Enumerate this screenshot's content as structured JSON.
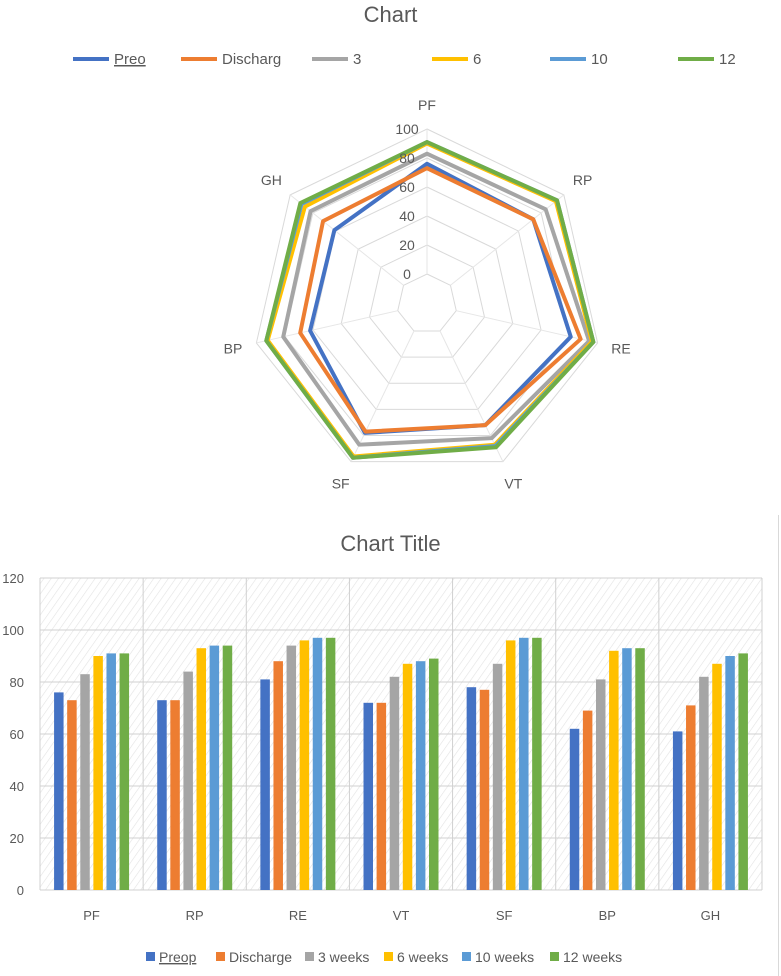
{
  "chart_data": [
    {
      "type": "radar",
      "title": "Chart",
      "categories": [
        "PF",
        "RP",
        "RE",
        "VT",
        "SF",
        "BP",
        "GH"
      ],
      "axis_ticks": [
        "0",
        "20",
        "40",
        "60",
        "80",
        "100"
      ],
      "rlim": [
        0,
        100
      ],
      "legend_position": "top",
      "series": [
        {
          "name": "Preo",
          "color": "#4472C4",
          "values": [
            76,
            73,
            81,
            72,
            78,
            62,
            61
          ]
        },
        {
          "name": "Discharg",
          "color": "#ED7D31",
          "values": [
            73,
            73,
            88,
            72,
            77,
            69,
            71
          ]
        },
        {
          "name": "3",
          "color": "#A5A5A5",
          "values": [
            83,
            84,
            94,
            82,
            87,
            81,
            82
          ]
        },
        {
          "name": "6",
          "color": "#FFC000",
          "values": [
            90,
            93,
            96,
            87,
            96,
            92,
            87
          ]
        },
        {
          "name": "10",
          "color": "#5B9BD5",
          "values": [
            91,
            94,
            97,
            88,
            97,
            93,
            90
          ]
        },
        {
          "name": "12",
          "color": "#70AD47",
          "values": [
            91,
            94,
            97,
            89,
            97,
            93,
            91
          ]
        }
      ]
    },
    {
      "type": "bar",
      "title": "Chart Title",
      "categories": [
        "PF",
        "RP",
        "RE",
        "VT",
        "SF",
        "BP",
        "GH"
      ],
      "y_ticks": [
        "0",
        "20",
        "40",
        "60",
        "80",
        "100",
        "120"
      ],
      "ylim": [
        0,
        120
      ],
      "grid": true,
      "legend_position": "bottom",
      "series": [
        {
          "name": "Preop",
          "color": "#4472C4",
          "values": [
            76,
            73,
            81,
            72,
            78,
            62,
            61
          ]
        },
        {
          "name": "Discharge",
          "color": "#ED7D31",
          "values": [
            73,
            73,
            88,
            72,
            77,
            69,
            71
          ]
        },
        {
          "name": "3 weeks",
          "color": "#A5A5A5",
          "values": [
            83,
            84,
            94,
            82,
            87,
            81,
            82
          ]
        },
        {
          "name": "6 weeks",
          "color": "#FFC000",
          "values": [
            90,
            93,
            96,
            87,
            96,
            92,
            87
          ]
        },
        {
          "name": "10 weeks",
          "color": "#5B9BD5",
          "values": [
            91,
            94,
            97,
            88,
            97,
            93,
            90
          ]
        },
        {
          "name": "12 weeks",
          "color": "#70AD47",
          "values": [
            91,
            94,
            97,
            89,
            97,
            93,
            91
          ]
        }
      ]
    }
  ]
}
